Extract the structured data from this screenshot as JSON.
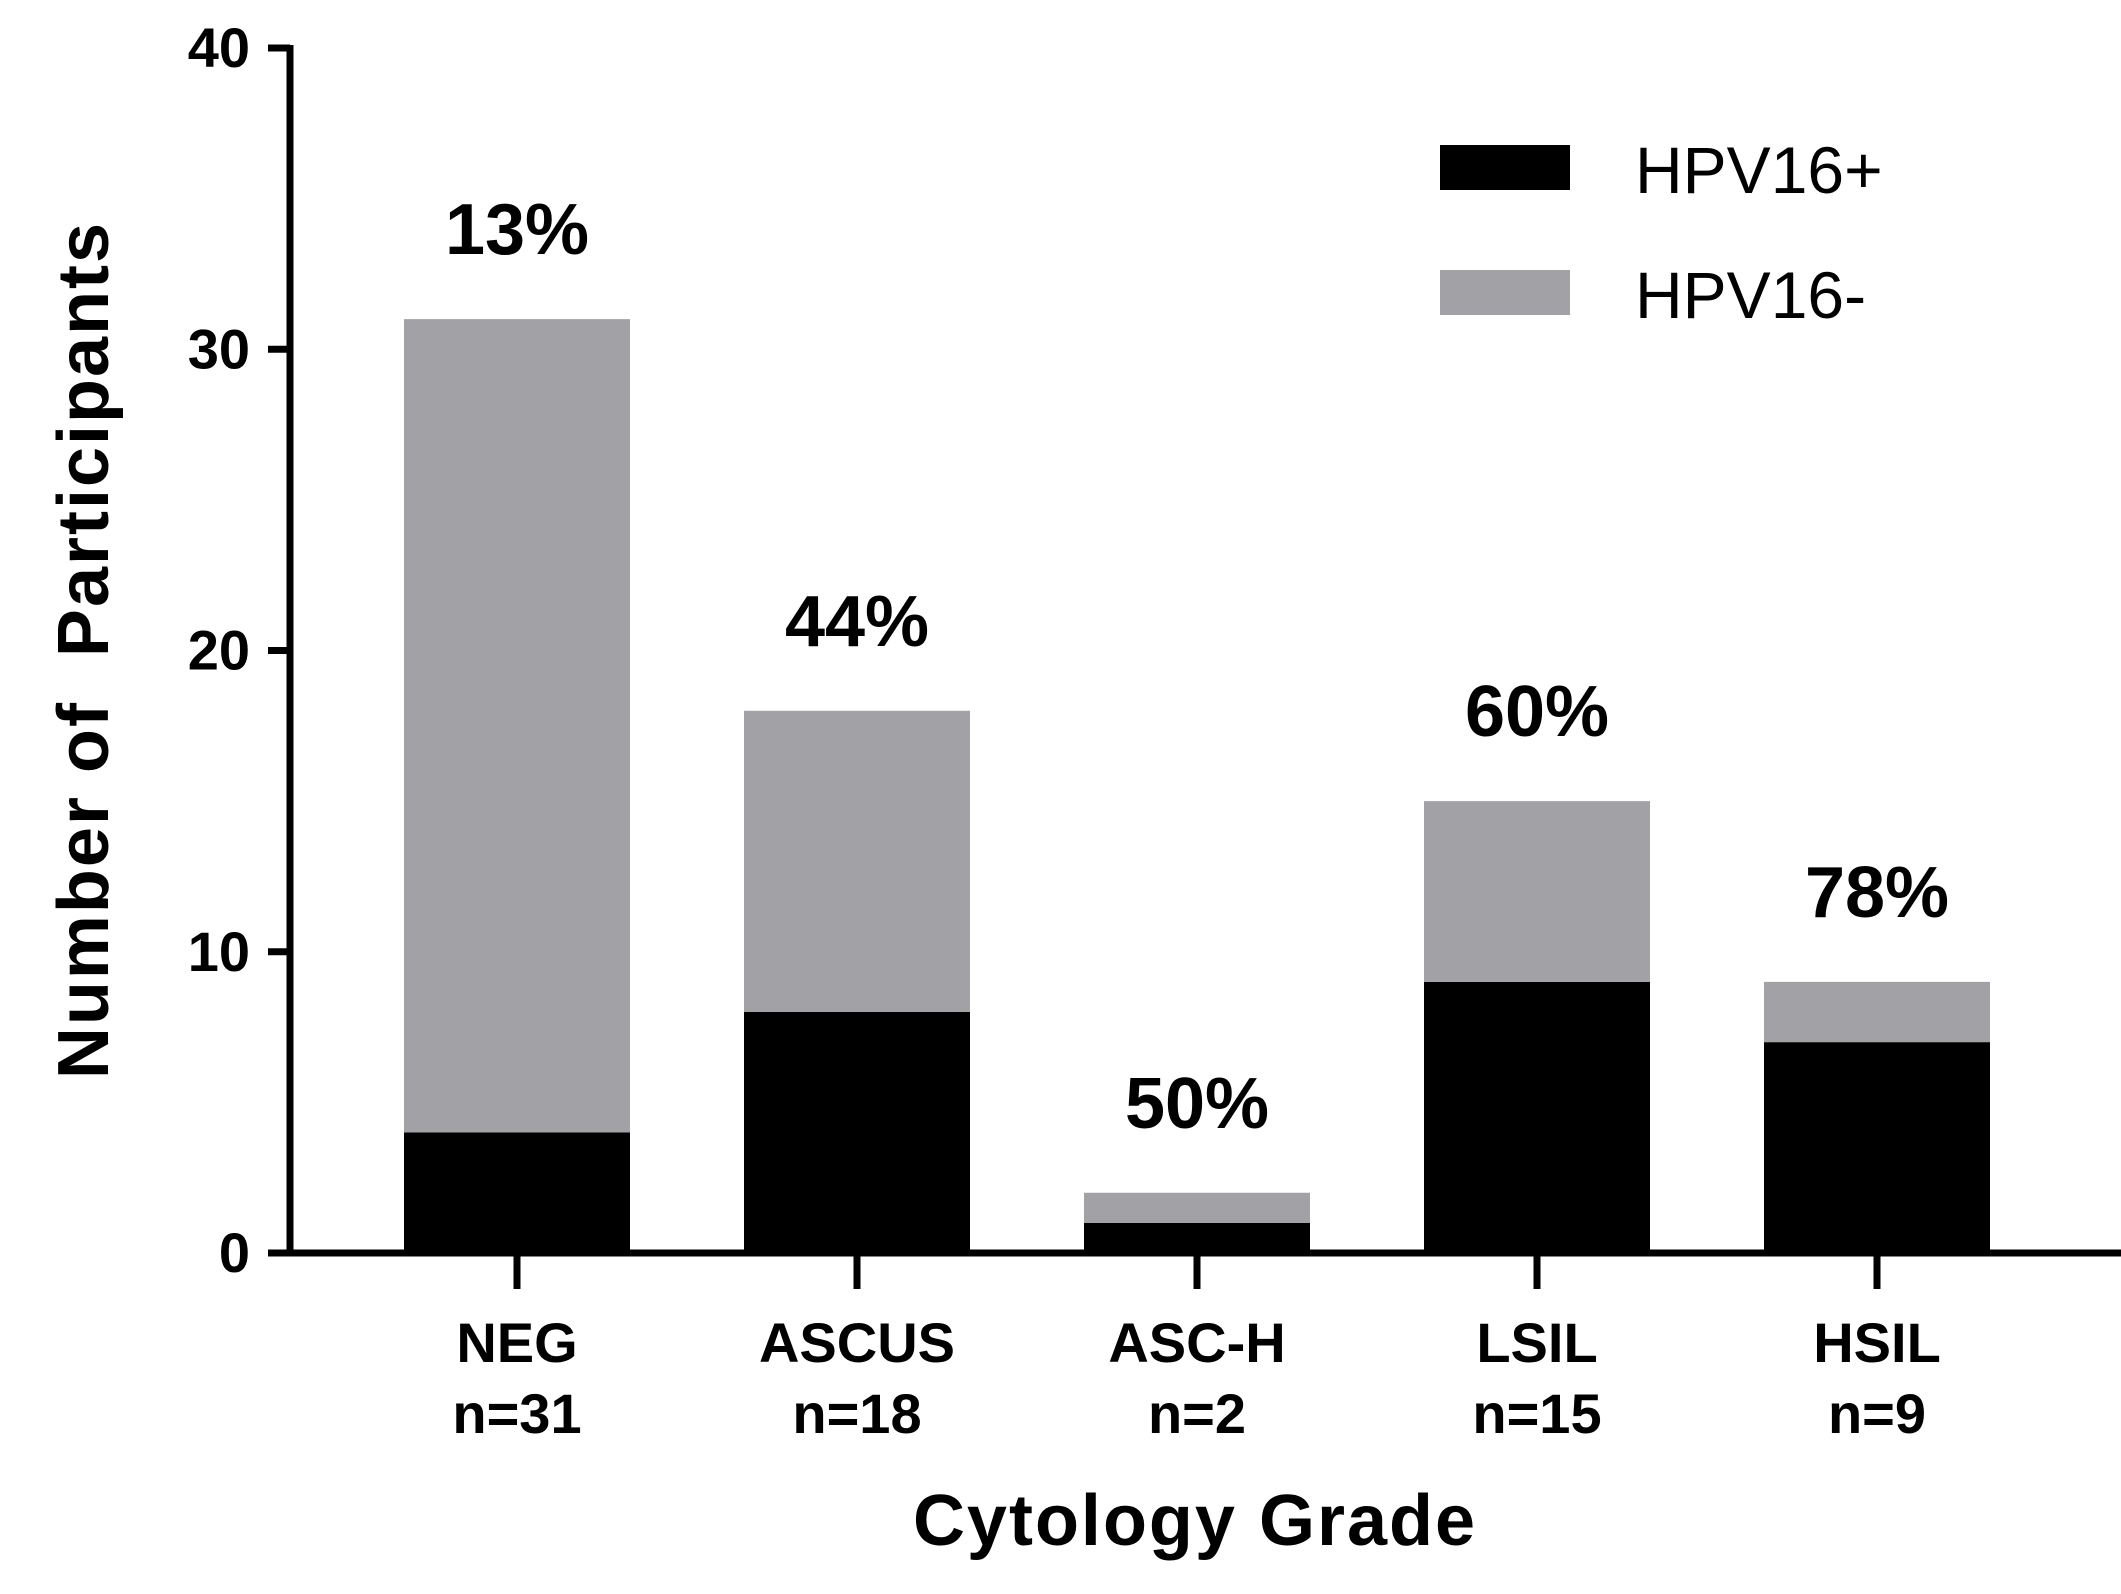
{
  "chart_data": {
    "type": "bar",
    "stacked": true,
    "title": "",
    "xlabel": "Cytology Grade",
    "ylabel": "Number of  Participants",
    "ylim": [
      0,
      40
    ],
    "yticks": [
      0,
      10,
      20,
      30,
      40
    ],
    "categories": [
      "NEG",
      "ASCUS",
      "ASC-H",
      "LSIL",
      "HSIL"
    ],
    "category_counts": [
      "n=31",
      "n=18",
      "n=2",
      "n=15",
      "n=9"
    ],
    "series": [
      {
        "name": "HPV16+",
        "color": "#000000",
        "values": [
          4,
          8,
          1,
          9,
          7
        ]
      },
      {
        "name": "HPV16-",
        "color": "#a2a1a6",
        "values": [
          27,
          10,
          1,
          6,
          2
        ]
      }
    ],
    "annotations": [
      "13%",
      "44%",
      "50%",
      "60%",
      "78%"
    ],
    "legend": {
      "position": "top-right",
      "entries": [
        "HPV16+",
        "HPV16-"
      ]
    }
  }
}
